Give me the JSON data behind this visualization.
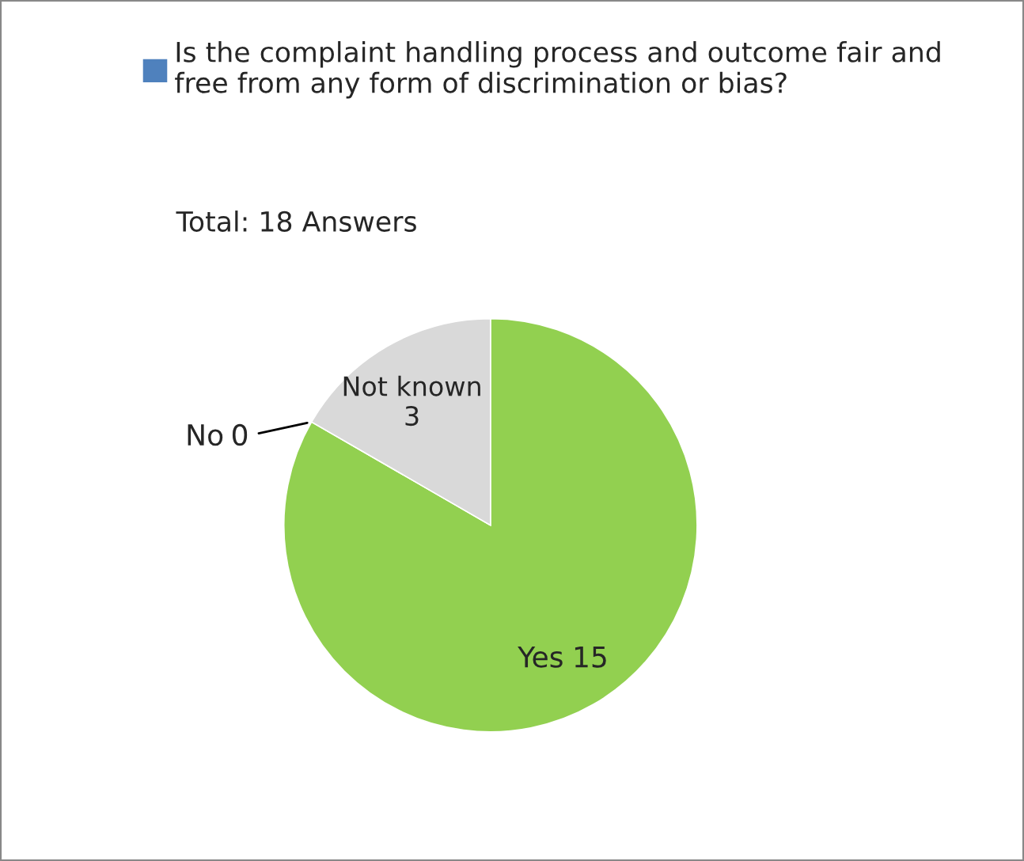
{
  "chart_data": {
    "type": "pie",
    "subtitle": "Total: 18 Answers",
    "categories": [
      "Yes",
      "No",
      "Not known"
    ],
    "series": [
      {
        "name": "Is the complaint handling process and outcome fair and free from any form of discrimination or bias?",
        "color": "#4f81bd",
        "values": [
          15,
          0,
          3
        ],
        "value_labels": [
          "15",
          "0",
          "3"
        ],
        "colors": [
          "#92d050",
          "#ff0000",
          "#d9d9d9"
        ]
      }
    ],
    "legend": "top"
  }
}
